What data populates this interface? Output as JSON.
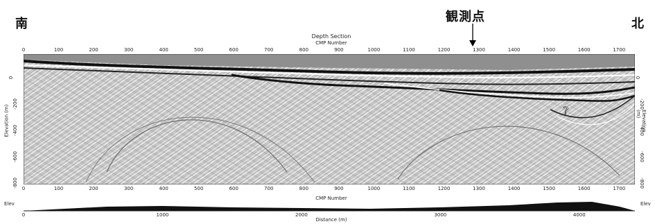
{
  "labels": {
    "south": "南",
    "north": "北",
    "observation_point": "観測点",
    "question_mark": "?"
  },
  "section": {
    "title": "Depth Section",
    "top_axis_title": "CMP Number",
    "bottom_axis_title": "CMP Number",
    "distance_axis_title": "Distance (m)",
    "left_axis_title": "Elevation (m)",
    "right_axis_title": "Elevation (m)",
    "cmp_ticks": [
      "0",
      "100",
      "200",
      "300",
      "400",
      "500",
      "600",
      "700",
      "800",
      "900",
      "1000",
      "1100",
      "1200",
      "1300",
      "1400",
      "1500",
      "1600",
      "1700"
    ],
    "depth_ticks": [
      "0",
      "-200",
      "-400",
      "-600",
      "-800"
    ],
    "distance_ticks": [
      "0",
      "1000",
      "2000",
      "3000",
      "4000"
    ],
    "left_elev_label": "Elev",
    "right_elev_label": "Elev"
  }
}
